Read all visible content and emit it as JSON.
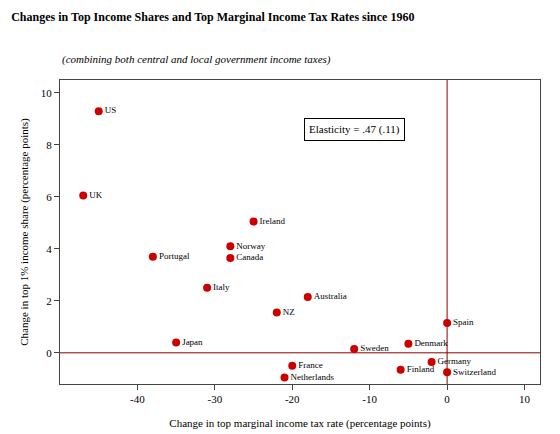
{
  "chart_data": {
    "type": "scatter",
    "title": "Changes in Top Income Shares and Top Marginal Income Tax Rates since 1960",
    "subtitle": "(combining both central and local government income taxes)",
    "xlabel": "Change in top marginal income tax rate (percentage points)",
    "ylabel": "Change in top 1% income share (percentage points)",
    "xlim": [
      -50,
      12
    ],
    "ylim": [
      -1.2,
      10.5
    ],
    "xticks": [
      -40,
      -30,
      -20,
      -10,
      0,
      10
    ],
    "yticks": [
      0,
      2,
      4,
      6,
      8,
      10
    ],
    "grid": false,
    "color": "#cc0000",
    "marker": "circle",
    "reference_lines": {
      "x": 0,
      "y": 0,
      "color": "#8b0000"
    },
    "annotations": [
      {
        "text": "Elasticity = .47 (.11)",
        "x": -12,
        "y": 8.6
      }
    ],
    "labels": [
      "US",
      "UK",
      "Portugal",
      "Ireland",
      "Norway",
      "Canada",
      "Italy",
      "Japan",
      "Australia",
      "NZ",
      "Sweden",
      "Denmark",
      "Spain",
      "France",
      "Germany",
      "Finland",
      "Netherlands",
      "Switzerland"
    ],
    "x": [
      -45,
      -47,
      -38,
      -25,
      -28,
      -28,
      -31,
      -35,
      -18,
      -22,
      -12,
      -5,
      0,
      -20,
      -2,
      -6,
      -21,
      0
    ],
    "values": [
      9.3,
      6.05,
      3.7,
      5.05,
      4.1,
      3.65,
      2.5,
      0.4,
      2.15,
      1.55,
      0.15,
      0.35,
      1.15,
      -0.5,
      -0.35,
      -0.65,
      -0.95,
      -0.75
    ]
  }
}
